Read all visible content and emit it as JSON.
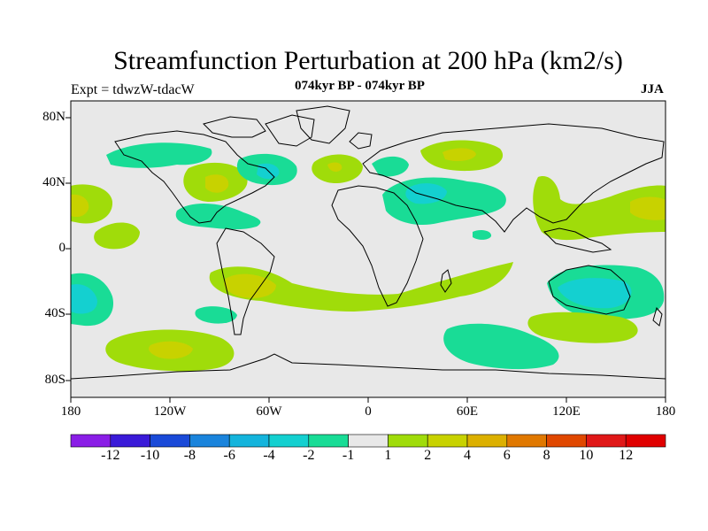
{
  "title": "Streamfunction Perturbation at 200 hPa (km2/s)",
  "subtitle": "074kyr BP - 074kyr BP",
  "left_label": "Expt = tdwzW-tdacW",
  "right_label": "JJA",
  "map": {
    "projection": "cylindrical equidistant",
    "lat_labels": [
      "80N",
      "40N",
      "0",
      "40S",
      "80S"
    ],
    "lon_labels": [
      "180",
      "120W",
      "60W",
      "0",
      "60E",
      "120E",
      "180"
    ]
  },
  "colorbar": {
    "labels": [
      "-12",
      "-10",
      "-8",
      "-6",
      "-4",
      "-2",
      "-1",
      "1",
      "2",
      "4",
      "6",
      "8",
      "10",
      "12"
    ],
    "colors": [
      "#8a1ee6",
      "#3a1ad8",
      "#1a4ad8",
      "#1a84dc",
      "#14b4dc",
      "#14d0d0",
      "#19dc96",
      "#e8e8e8",
      "#a0dc0a",
      "#c8d200",
      "#dcb000",
      "#e07800",
      "#e04800",
      "#e01818",
      "#e00000"
    ]
  },
  "colors": {
    "ocean_fill": "#e8e8e8",
    "neg_light": "#19dc96",
    "neg_mid": "#14d0d0",
    "pos_light": "#a0dc0a",
    "pos_mid": "#c8d200"
  }
}
